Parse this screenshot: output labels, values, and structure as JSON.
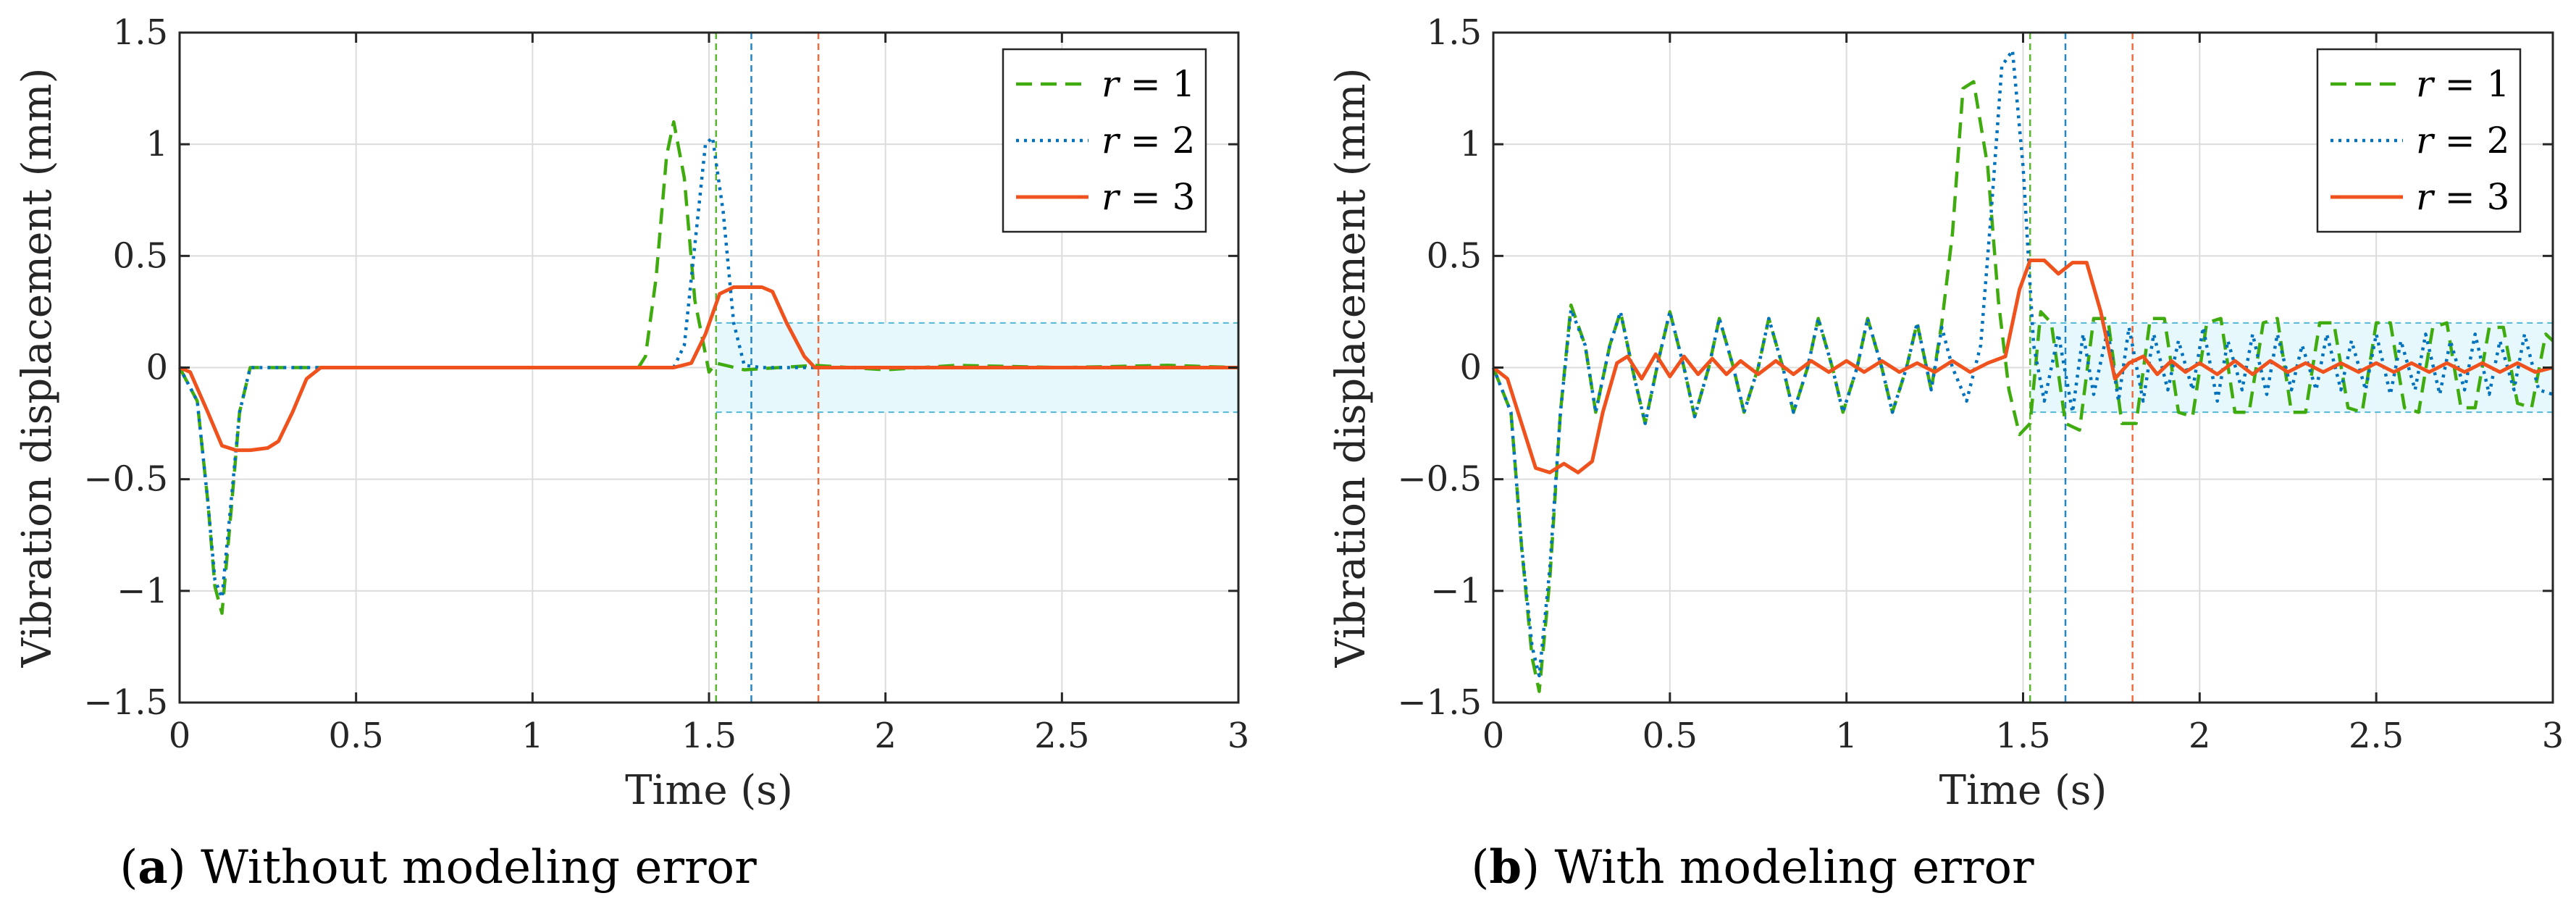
{
  "colors": {
    "r1": "#3fab0f",
    "r2": "#0072bd",
    "r3": "#f0521e",
    "band_fill": "#e6f8fb",
    "band_edge": "#52b8d6"
  },
  "chart_data": [
    {
      "id": "a",
      "type": "line",
      "caption_letter": "a",
      "caption_text": " Without modeling error",
      "xlabel": "Time (s)",
      "ylabel": "Vibration displacement (mm)",
      "xlim": [
        0,
        3
      ],
      "ylim": [
        -1.5,
        1.5
      ],
      "xticks": [
        0,
        0.5,
        1,
        1.5,
        2,
        2.5,
        3
      ],
      "xtick_labels": [
        "0",
        "0.5",
        "1",
        "1.5",
        "2",
        "2.5",
        "3"
      ],
      "yticks": [
        -1.5,
        -1,
        -0.5,
        0,
        0.5,
        1,
        1.5
      ],
      "ytick_labels": [
        "−1.5",
        "−1",
        "−0.5",
        "0",
        "0.5",
        "1",
        "1.5"
      ],
      "grid": true,
      "legend_location": "top-right",
      "tolerance_band": {
        "y_range": [
          -0.2,
          0.2
        ],
        "x_start": 1.52
      },
      "settling_lines": [
        {
          "series": "r = 1",
          "x": 1.52
        },
        {
          "series": "r = 2",
          "x": 1.62
        },
        {
          "series": "r = 3",
          "x": 1.81
        }
      ],
      "series": [
        {
          "name": "r = 1",
          "var": "r",
          "eq": " = 1",
          "style": "dashed",
          "x": [
            0,
            0.05,
            0.08,
            0.1,
            0.12,
            0.14,
            0.17,
            0.2,
            0.25,
            0.3,
            0.4,
            0.6,
            0.8,
            1.0,
            1.2,
            1.3,
            1.32,
            1.35,
            1.38,
            1.4,
            1.43,
            1.46,
            1.5,
            1.52,
            1.6,
            1.8,
            2.0,
            2.2,
            2.5,
            2.8,
            3.0
          ],
          "y": [
            0,
            -0.15,
            -0.6,
            -0.98,
            -1.1,
            -0.75,
            -0.2,
            0,
            0,
            0,
            0,
            0,
            0,
            0,
            0,
            0,
            0.05,
            0.4,
            0.95,
            1.1,
            0.85,
            0.3,
            -0.02,
            0.02,
            -0.01,
            0.01,
            -0.01,
            0.01,
            0,
            0.01,
            0
          ]
        },
        {
          "name": "r = 2",
          "var": "r",
          "eq": " = 2",
          "style": "dotted",
          "x": [
            0,
            0.05,
            0.08,
            0.1,
            0.12,
            0.14,
            0.17,
            0.2,
            0.25,
            0.3,
            0.4,
            0.6,
            0.8,
            1.0,
            1.2,
            1.4,
            1.43,
            1.46,
            1.49,
            1.51,
            1.54,
            1.57,
            1.6,
            1.65,
            1.8,
            2.0,
            2.5,
            3.0
          ],
          "y": [
            0,
            -0.15,
            -0.6,
            -0.95,
            -1.03,
            -0.7,
            -0.2,
            0,
            0,
            0,
            0,
            0,
            0,
            0,
            0,
            0,
            0.1,
            0.55,
            1.0,
            1.03,
            0.7,
            0.2,
            0.01,
            0,
            0,
            0,
            0,
            0
          ]
        },
        {
          "name": "r = 3",
          "var": "r",
          "eq": " = 3",
          "style": "solid",
          "x": [
            0,
            0.03,
            0.08,
            0.12,
            0.16,
            0.2,
            0.25,
            0.28,
            0.32,
            0.36,
            0.4,
            0.6,
            0.8,
            1.0,
            1.2,
            1.4,
            1.45,
            1.49,
            1.53,
            1.57,
            1.6,
            1.65,
            1.68,
            1.72,
            1.77,
            1.8,
            2.0,
            2.5,
            3.0
          ],
          "y": [
            0,
            -0.02,
            -0.2,
            -0.35,
            -0.37,
            -0.37,
            -0.36,
            -0.33,
            -0.2,
            -0.05,
            0,
            0,
            0,
            0,
            0,
            0,
            0.02,
            0.15,
            0.33,
            0.36,
            0.36,
            0.36,
            0.34,
            0.2,
            0.05,
            0,
            0,
            0,
            0
          ]
        }
      ]
    },
    {
      "id": "b",
      "type": "line",
      "caption_letter": "b",
      "caption_text": " With modeling error",
      "xlabel": "Time (s)",
      "ylabel": "Vibration displacement (mm)",
      "xlim": [
        0,
        3
      ],
      "ylim": [
        -1.5,
        1.5
      ],
      "xticks": [
        0,
        0.5,
        1,
        1.5,
        2,
        2.5,
        3
      ],
      "xtick_labels": [
        "0",
        "0.5",
        "1",
        "1.5",
        "2",
        "2.5",
        "3"
      ],
      "yticks": [
        -1.5,
        -1,
        -0.5,
        0,
        0.5,
        1,
        1.5
      ],
      "ytick_labels": [
        "−1.5",
        "−1",
        "−0.5",
        "0",
        "0.5",
        "1",
        "1.5"
      ],
      "grid": true,
      "legend_location": "top-right",
      "tolerance_band": {
        "y_range": [
          -0.2,
          0.2
        ],
        "x_start": 1.52
      },
      "settling_lines": [
        {
          "series": "r = 1",
          "x": 1.52
        },
        {
          "series": "r = 2",
          "x": 1.62
        },
        {
          "series": "r = 3",
          "x": 1.81
        }
      ],
      "series": [
        {
          "name": "r = 1",
          "var": "r",
          "eq": " = 1",
          "style": "dashed",
          "x": [
            0,
            0.05,
            0.08,
            0.11,
            0.13,
            0.16,
            0.19,
            0.22,
            0.26,
            0.29,
            0.33,
            0.36,
            0.4,
            0.43,
            0.47,
            0.5,
            0.54,
            0.57,
            0.61,
            0.64,
            0.68,
            0.71,
            0.75,
            0.78,
            0.82,
            0.85,
            0.89,
            0.92,
            0.96,
            0.99,
            1.03,
            1.06,
            1.1,
            1.13,
            1.17,
            1.2,
            1.24,
            1.27,
            1.3,
            1.33,
            1.36,
            1.4,
            1.43,
            1.46,
            1.49,
            1.52,
            1.55,
            1.58,
            1.62,
            1.66,
            1.7,
            1.74,
            1.78,
            1.82,
            1.86,
            1.9,
            1.94,
            1.98,
            2.02,
            2.06,
            2.1,
            2.14,
            2.18,
            2.22,
            2.26,
            2.3,
            2.34,
            2.38,
            2.42,
            2.46,
            2.5,
            2.54,
            2.58,
            2.62,
            2.66,
            2.7,
            2.74,
            2.78,
            2.82,
            2.86,
            2.9,
            2.94,
            2.98,
            3.0
          ],
          "y": [
            0,
            -0.2,
            -0.8,
            -1.3,
            -1.45,
            -0.95,
            -0.2,
            0.28,
            0.1,
            -0.2,
            0.1,
            0.25,
            -0.05,
            -0.25,
            0.05,
            0.25,
            0,
            -0.22,
            0,
            0.22,
            0,
            -0.2,
            0,
            0.22,
            0,
            -0.2,
            0,
            0.22,
            0,
            -0.2,
            0,
            0.22,
            0,
            -0.2,
            0,
            0.2,
            -0.1,
            0.2,
            0.6,
            1.25,
            1.28,
            0.9,
            0.3,
            -0.1,
            -0.3,
            -0.25,
            0.25,
            0.2,
            -0.25,
            -0.28,
            0.22,
            0.22,
            -0.25,
            -0.25,
            0.22,
            0.22,
            -0.2,
            -0.22,
            0.2,
            0.22,
            -0.2,
            -0.2,
            0.2,
            0.22,
            -0.2,
            -0.2,
            0.2,
            0.2,
            -0.18,
            -0.2,
            0.2,
            0.2,
            -0.18,
            -0.2,
            0.18,
            0.2,
            -0.18,
            -0.18,
            0.18,
            0.18,
            -0.16,
            -0.18,
            0.15,
            0.12
          ]
        },
        {
          "name": "r = 2",
          "var": "r",
          "eq": " = 2",
          "style": "dotted",
          "x": [
            0,
            0.05,
            0.08,
            0.11,
            0.13,
            0.16,
            0.19,
            0.22,
            0.26,
            0.29,
            0.33,
            0.36,
            0.4,
            0.43,
            0.47,
            0.5,
            0.54,
            0.57,
            0.61,
            0.64,
            0.68,
            0.71,
            0.75,
            0.78,
            0.82,
            0.85,
            0.89,
            0.92,
            0.96,
            0.99,
            1.03,
            1.06,
            1.1,
            1.13,
            1.17,
            1.2,
            1.24,
            1.27,
            1.3,
            1.34,
            1.38,
            1.41,
            1.44,
            1.47,
            1.5,
            1.53,
            1.56,
            1.6,
            1.64,
            1.67,
            1.7,
            1.74,
            1.77,
            1.8,
            1.84,
            1.87,
            1.91,
            1.94,
            1.98,
            2.01,
            2.05,
            2.08,
            2.12,
            2.15,
            2.19,
            2.22,
            2.26,
            2.29,
            2.33,
            2.36,
            2.4,
            2.43,
            2.47,
            2.5,
            2.54,
            2.57,
            2.61,
            2.64,
            2.68,
            2.71,
            2.75,
            2.78,
            2.82,
            2.85,
            2.89,
            2.92,
            2.96,
            3.0
          ],
          "y": [
            0,
            -0.2,
            -0.8,
            -1.25,
            -1.38,
            -0.9,
            -0.2,
            0.26,
            0.1,
            -0.2,
            0.1,
            0.25,
            -0.05,
            -0.25,
            0.05,
            0.25,
            0,
            -0.22,
            0,
            0.22,
            0,
            -0.2,
            0,
            0.22,
            0,
            -0.2,
            0,
            0.22,
            0,
            -0.2,
            0,
            0.22,
            0,
            -0.2,
            0,
            0.2,
            -0.1,
            0.18,
            0,
            -0.15,
            0.1,
            0.7,
            1.35,
            1.42,
            0.9,
            0.1,
            -0.15,
            0.15,
            -0.2,
            0.15,
            -0.12,
            0.17,
            -0.15,
            0.18,
            -0.15,
            0.15,
            -0.1,
            0.12,
            -0.1,
            0.18,
            -0.15,
            0.12,
            -0.1,
            0.15,
            -0.12,
            0.15,
            -0.1,
            0.1,
            -0.1,
            0.15,
            -0.1,
            0.12,
            -0.1,
            0.15,
            -0.12,
            0.12,
            -0.1,
            0.15,
            -0.12,
            0.12,
            -0.1,
            0.15,
            -0.12,
            0.12,
            -0.1,
            0.15,
            -0.1,
            -0.12
          ]
        },
        {
          "name": "r = 3",
          "var": "r",
          "eq": " = 3",
          "style": "solid",
          "x": [
            0,
            0.04,
            0.08,
            0.12,
            0.16,
            0.2,
            0.24,
            0.28,
            0.31,
            0.35,
            0.38,
            0.42,
            0.46,
            0.5,
            0.54,
            0.58,
            0.62,
            0.66,
            0.7,
            0.75,
            0.8,
            0.85,
            0.9,
            0.95,
            1.0,
            1.05,
            1.1,
            1.15,
            1.2,
            1.25,
            1.3,
            1.35,
            1.4,
            1.45,
            1.49,
            1.52,
            1.56,
            1.6,
            1.64,
            1.68,
            1.72,
            1.76,
            1.8,
            1.84,
            1.88,
            1.92,
            1.96,
            2.0,
            2.05,
            2.1,
            2.15,
            2.2,
            2.25,
            2.3,
            2.35,
            2.4,
            2.45,
            2.5,
            2.55,
            2.6,
            2.65,
            2.7,
            2.75,
            2.8,
            2.85,
            2.9,
            2.95,
            3.0
          ],
          "y": [
            0,
            -0.05,
            -0.25,
            -0.45,
            -0.47,
            -0.43,
            -0.47,
            -0.42,
            -0.2,
            0.02,
            0.05,
            -0.05,
            0.06,
            -0.04,
            0.05,
            -0.03,
            0.04,
            -0.03,
            0.03,
            -0.03,
            0.03,
            -0.03,
            0.03,
            -0.02,
            0.03,
            -0.02,
            0.03,
            -0.02,
            0.02,
            -0.02,
            0.03,
            -0.02,
            0.02,
            0.05,
            0.35,
            0.48,
            0.48,
            0.42,
            0.47,
            0.47,
            0.25,
            -0.05,
            0.02,
            0.05,
            -0.03,
            0.03,
            -0.02,
            0.02,
            -0.03,
            0.03,
            -0.03,
            0.03,
            -0.02,
            0.02,
            -0.02,
            0.02,
            -0.02,
            0.02,
            -0.02,
            0.02,
            -0.02,
            0.02,
            -0.02,
            0.02,
            -0.02,
            0.02,
            -0.02,
            0
          ]
        }
      ]
    }
  ]
}
